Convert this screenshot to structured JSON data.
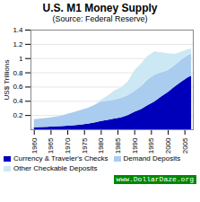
{
  "chart_data": {
    "type": "area",
    "stacked": true,
    "title": "U.S. M1 Money Supply",
    "subtitle": "(Source: Federal Reserve)",
    "ylabel": "US$ Trillions",
    "annotation": "www.DollarDaze.org",
    "x": [
      1960,
      1962,
      1964,
      1966,
      1968,
      1970,
      1972,
      1974,
      1976,
      1978,
      1980,
      1982,
      1984,
      1986,
      1988,
      1990,
      1992,
      1994,
      1996,
      1998,
      2000,
      2002,
      2004,
      2006,
      2007
    ],
    "series": [
      {
        "name": "Currency & Traveler's Checks",
        "color": "#0000bb",
        "values": [
          0.029,
          0.032,
          0.036,
          0.041,
          0.044,
          0.049,
          0.057,
          0.065,
          0.08,
          0.095,
          0.116,
          0.134,
          0.152,
          0.167,
          0.2,
          0.246,
          0.285,
          0.34,
          0.39,
          0.46,
          0.523,
          0.6,
          0.67,
          0.73,
          0.753
        ]
      },
      {
        "name": "Demand Deposits",
        "color": "#aaccee",
        "values": [
          0.112,
          0.118,
          0.125,
          0.132,
          0.145,
          0.17,
          0.185,
          0.205,
          0.22,
          0.245,
          0.271,
          0.265,
          0.265,
          0.274,
          0.278,
          0.29,
          0.32,
          0.36,
          0.375,
          0.34,
          0.309,
          0.3,
          0.31,
          0.315,
          0.31
        ]
      },
      {
        "name": "Other Checkable Deposits",
        "color": "#cce8f4",
        "values": [
          0.0,
          0.0,
          0.0,
          0.0,
          0.0,
          0.0,
          0.0,
          0.0,
          0.0,
          0.002,
          0.027,
          0.075,
          0.13,
          0.145,
          0.19,
          0.29,
          0.32,
          0.33,
          0.33,
          0.28,
          0.238,
          0.16,
          0.11,
          0.08,
          0.072
        ]
      }
    ],
    "xlim": [
      1959,
      2007.5
    ],
    "xticks": [
      1960,
      1965,
      1970,
      1975,
      1980,
      1985,
      1990,
      1995,
      2000,
      2005
    ],
    "ylim": [
      0,
      1.4
    ],
    "yticks": [
      0.2,
      0.4,
      0.6,
      0.8,
      1,
      1.2,
      1.4
    ],
    "grid": true,
    "legend": "bottom"
  }
}
